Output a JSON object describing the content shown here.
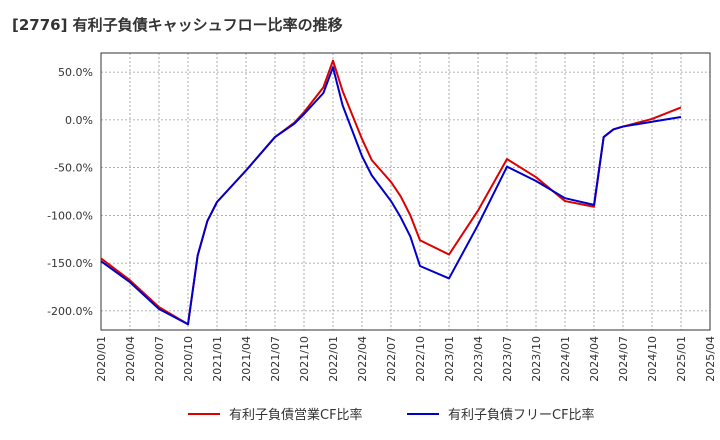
{
  "title": "[2776]  有利子負債キャッシュフロー比率の推移",
  "chart_data": {
    "type": "line",
    "title": "[2776]  有利子負債キャッシュフロー比率の推移",
    "xlabel": "",
    "ylabel": "",
    "ylim": [
      -220,
      70
    ],
    "grid": true,
    "legend_position": "bottom",
    "y_ticks": [
      {
        "value": 50,
        "label": "50.0%"
      },
      {
        "value": 0,
        "label": "0.0%"
      },
      {
        "value": -50,
        "label": "-50.0%"
      },
      {
        "value": -100,
        "label": "-100.0%"
      },
      {
        "value": -150,
        "label": "-150.0%"
      },
      {
        "value": -200,
        "label": "-200.0%"
      }
    ],
    "x_ticks": [
      "2020/01",
      "2020/04",
      "2020/07",
      "2020/10",
      "2021/01",
      "2021/04",
      "2021/07",
      "2021/10",
      "2022/01",
      "2022/04",
      "2022/07",
      "2022/10",
      "2023/01",
      "2023/04",
      "2023/07",
      "2023/10",
      "2024/01",
      "2024/04",
      "2024/07",
      "2024/10",
      "2025/01",
      "2025/04"
    ],
    "series": [
      {
        "name": "有利子負債営業CF比率",
        "color": "#dd0000",
        "points": [
          [
            "2020/01",
            -145
          ],
          [
            "2020/04",
            -168
          ],
          [
            "2020/07",
            -196
          ],
          [
            "2020/10",
            -214
          ],
          [
            "2020/11",
            -142
          ],
          [
            "2020/12",
            -106
          ],
          [
            "2021/01",
            -86
          ],
          [
            "2021/04",
            -53
          ],
          [
            "2021/07",
            -18
          ],
          [
            "2021/09",
            -3
          ],
          [
            "2021/10",
            8
          ],
          [
            "2021/12",
            34
          ],
          [
            "2022/01",
            62
          ],
          [
            "2022/02",
            30
          ],
          [
            "2022/04",
            -20
          ],
          [
            "2022/05",
            -42
          ],
          [
            "2022/07",
            -65
          ],
          [
            "2022/08",
            -80
          ],
          [
            "2022/09",
            -100
          ],
          [
            "2022/10",
            -126
          ],
          [
            "2023/01",
            -141
          ],
          [
            "2023/04",
            -95
          ],
          [
            "2023/07",
            -41
          ],
          [
            "2023/10",
            -60
          ],
          [
            "2024/01",
            -85
          ],
          [
            "2024/04",
            -91
          ],
          [
            "2024/05",
            -18
          ],
          [
            "2024/06",
            -10
          ],
          [
            "2024/07",
            -7
          ],
          [
            "2024/10",
            1
          ],
          [
            "2025/01",
            13
          ]
        ]
      },
      {
        "name": "有利子負債フリーCF比率",
        "color": "#0000cc",
        "points": [
          [
            "2020/01",
            -148
          ],
          [
            "2020/04",
            -170
          ],
          [
            "2020/07",
            -198
          ],
          [
            "2020/10",
            -214
          ],
          [
            "2020/11",
            -142
          ],
          [
            "2020/12",
            -106
          ],
          [
            "2021/01",
            -86
          ],
          [
            "2021/04",
            -53
          ],
          [
            "2021/07",
            -18
          ],
          [
            "2021/09",
            -4
          ],
          [
            "2021/10",
            6
          ],
          [
            "2021/12",
            28
          ],
          [
            "2022/01",
            55
          ],
          [
            "2022/02",
            15
          ],
          [
            "2022/04",
            -38
          ],
          [
            "2022/05",
            -58
          ],
          [
            "2022/07",
            -85
          ],
          [
            "2022/08",
            -102
          ],
          [
            "2022/09",
            -122
          ],
          [
            "2022/10",
            -153
          ],
          [
            "2023/01",
            -166
          ],
          [
            "2023/04",
            -110
          ],
          [
            "2023/07",
            -49
          ],
          [
            "2023/10",
            -64
          ],
          [
            "2024/01",
            -82
          ],
          [
            "2024/04",
            -89
          ],
          [
            "2024/05",
            -18
          ],
          [
            "2024/06",
            -10
          ],
          [
            "2024/07",
            -7
          ],
          [
            "2024/10",
            -2
          ],
          [
            "2025/01",
            3
          ]
        ]
      }
    ]
  }
}
